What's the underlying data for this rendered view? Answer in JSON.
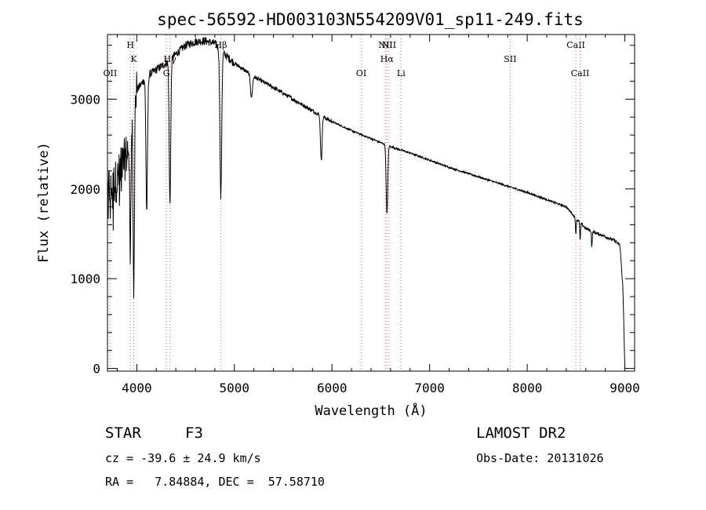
{
  "chart_data": {
    "type": "line",
    "title": "spec-56592-HD003103N554209V01_sp11-249.fits",
    "xlabel": "Wavelength (Å)",
    "ylabel": "Flux (relative)",
    "xlim": [
      3700,
      9100
    ],
    "ylim": [
      -30,
      3720
    ],
    "xticks": [
      4000,
      5000,
      6000,
      7000,
      8000,
      9000
    ],
    "yticks": [
      0,
      1000,
      2000,
      3000
    ],
    "grid": false,
    "legend": "none",
    "line_color": "#000000",
    "marker_color": "#cc6666",
    "continuum": {
      "x": [
        3700,
        3800,
        3900,
        4000,
        4100,
        4200,
        4300,
        4400,
        4500,
        4600,
        4700,
        4800,
        4900,
        5000,
        5200,
        5400,
        5600,
        5800,
        6000,
        6200,
        6400,
        6600,
        6800,
        7000,
        7200,
        7400,
        7600,
        7800,
        8000,
        8200,
        8400,
        8500,
        8600,
        8700,
        8800,
        8900,
        8950,
        8980,
        9000
      ],
      "y": [
        2000,
        2100,
        2400,
        3100,
        3250,
        3330,
        3400,
        3500,
        3600,
        3640,
        3650,
        3620,
        3500,
        3400,
        3250,
        3130,
        3000,
        2870,
        2750,
        2650,
        2560,
        2470,
        2400,
        2320,
        2240,
        2170,
        2100,
        2030,
        1960,
        1880,
        1800,
        1670,
        1560,
        1510,
        1470,
        1420,
        1370,
        900,
        0
      ]
    },
    "absorption_lines": [
      {
        "x": 3934,
        "depth": 1500,
        "width": 6
      },
      {
        "x": 3969,
        "depth": 1900,
        "width": 7
      },
      {
        "x": 4102,
        "depth": 1500,
        "width": 8
      },
      {
        "x": 4340,
        "depth": 1600,
        "width": 8
      },
      {
        "x": 4861,
        "depth": 1650,
        "width": 9
      },
      {
        "x": 5175,
        "depth": 250,
        "width": 10
      },
      {
        "x": 5890,
        "depth": 500,
        "width": 8
      },
      {
        "x": 6563,
        "depth": 770,
        "width": 8
      },
      {
        "x": 8498,
        "depth": 170,
        "width": 4
      },
      {
        "x": 8542,
        "depth": 200,
        "width": 4
      },
      {
        "x": 8662,
        "depth": 180,
        "width": 4
      }
    ],
    "line_markers": [
      {
        "label": "OII",
        "x": 3727,
        "level": 3
      },
      {
        "label": "H",
        "x": 3934,
        "level": 1
      },
      {
        "label": "K",
        "x": 3969,
        "level": 2
      },
      {
        "label": "G",
        "x": 4304,
        "level": 3
      },
      {
        "label": "Hγ",
        "x": 4340,
        "level": 2
      },
      {
        "label": "Hβ",
        "x": 4861,
        "level": 1
      },
      {
        "label": "OI",
        "x": 6300,
        "level": 3
      },
      {
        "label": "NII",
        "x": 6548,
        "level": 1
      },
      {
        "label": "Hα",
        "x": 6563,
        "level": 2
      },
      {
        "label": "NII",
        "x": 6584,
        "level": 1
      },
      {
        "label": "Li",
        "x": 6708,
        "level": 3
      },
      {
        "label": "SII",
        "x": 7825,
        "level": 2
      },
      {
        "label": "CaII",
        "x": 8498,
        "level": 1
      },
      {
        "label": "CaII",
        "x": 8542,
        "level": 3
      }
    ]
  },
  "info": {
    "class_label": "STAR",
    "subclass": "F3",
    "survey": "LAMOST DR2",
    "cz": "cz = -39.6 ± 24.9 km/s",
    "obs_date": "Obs-Date: 20131026",
    "radec": "RA =   7.84884, DEC =  57.58710"
  }
}
